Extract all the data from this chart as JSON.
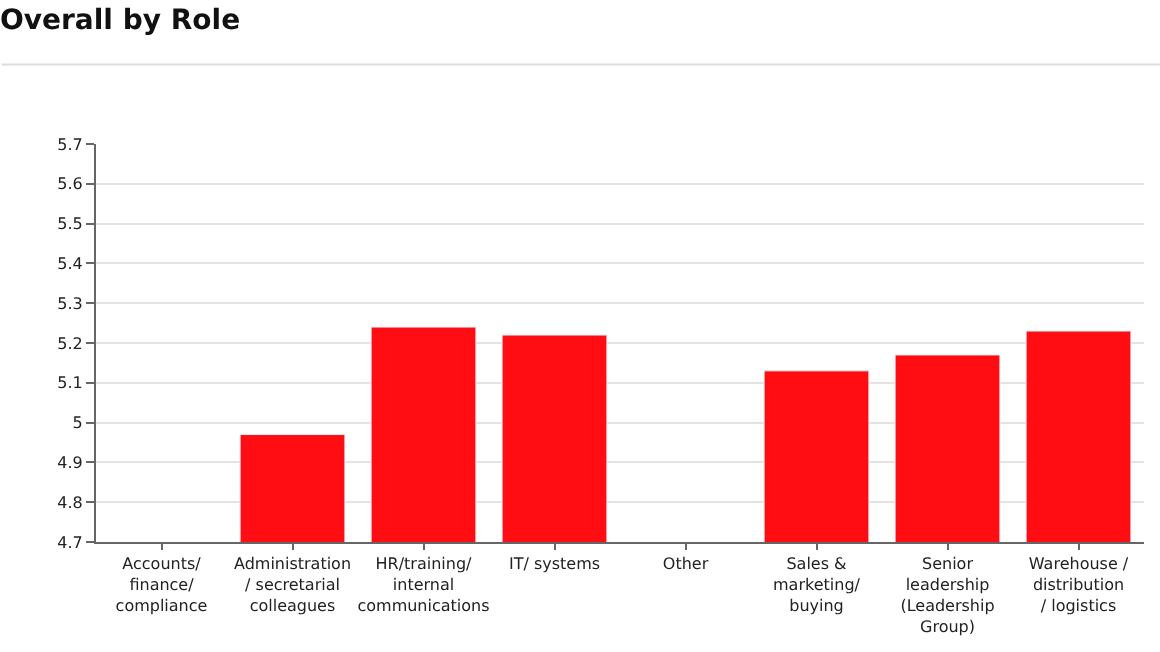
{
  "chart_data": {
    "type": "bar",
    "title": "Overall by Role",
    "categories": [
      "Accounts/ finance/ compliance",
      "Administration / secretarial colleagues",
      "HR/training/ internal communications",
      "IT/ systems",
      "Other",
      "Sales & marketing/ buying",
      "Senior leadership (Leadership Group)",
      "Warehouse / distribution / logistics"
    ],
    "values": [
      null,
      4.97,
      5.24,
      5.22,
      null,
      5.13,
      5.17,
      5.23
    ],
    "color": "#ff0d12",
    "ylim": [
      4.7,
      5.7
    ],
    "yticks": [
      4.7,
      4.8,
      4.9,
      5,
      5.1,
      5.2,
      5.3,
      5.4,
      5.5,
      5.6,
      5.7
    ],
    "grid": "y"
  }
}
